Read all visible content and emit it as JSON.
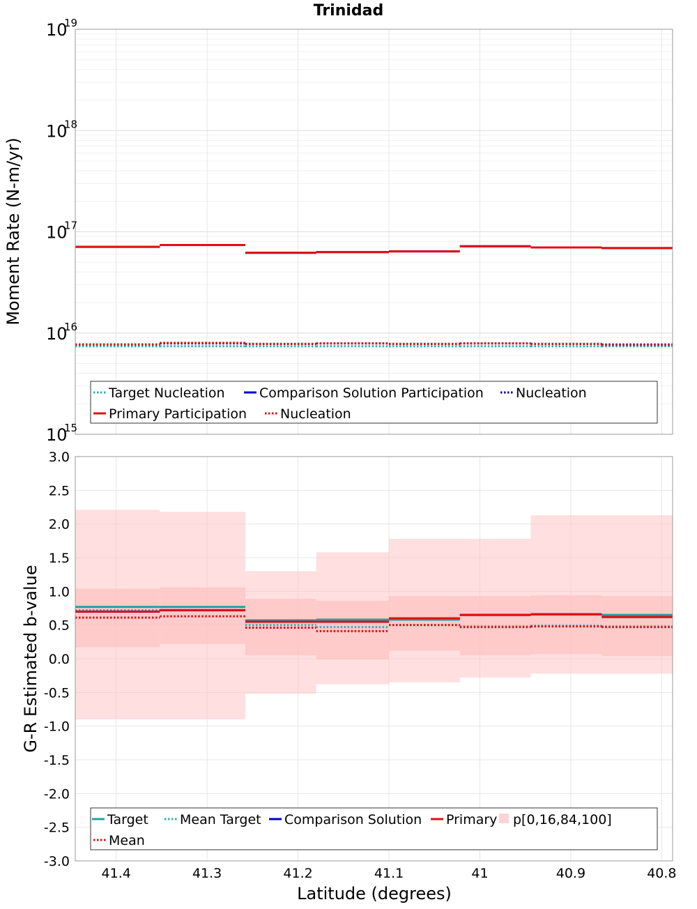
{
  "title": "Trinidad",
  "chart_data": [
    {
      "type": "line",
      "subtype": "step",
      "ylabel": "Moment Rate (N-m/yr)",
      "yscale": "log",
      "ylim": [
        1000000000000000.0,
        1e+19
      ],
      "y_ticks": [
        {
          "base": "10",
          "exp": "15"
        },
        {
          "base": "10",
          "exp": "16"
        },
        {
          "base": "10",
          "exp": "17"
        },
        {
          "base": "10",
          "exp": "18"
        },
        {
          "base": "10",
          "exp": "19"
        }
      ],
      "xlim": [
        41.445,
        40.788
      ],
      "x_bin_edges": [
        41.445,
        41.352,
        41.258,
        41.18,
        41.1,
        41.022,
        40.944,
        40.866,
        40.788
      ],
      "grid": true,
      "legend_position": "bottom-inside",
      "series": [
        {
          "name": "Target Nucleation",
          "color": "#26b5b5",
          "dash": "dotted",
          "values": [
            7400000000000000.0,
            7400000000000000.0,
            7400000000000000.0,
            7400000000000000.0,
            7400000000000000.0,
            7400000000000000.0,
            7400000000000000.0,
            7400000000000000.0
          ]
        },
        {
          "name": "Comparison Solution Participation",
          "color": "#0000cc",
          "dash": "solid",
          "values": [
            7.1e+16,
            7.4e+16,
            6.2e+16,
            6.3e+16,
            6.4e+16,
            7.2e+16,
            7e+16,
            6.9e+16
          ]
        },
        {
          "name": "Nucleation",
          "color": "#0000aa",
          "dash": "dotted",
          "values": [
            7700000000000000.0,
            7900000000000000.0,
            7800000000000000.0,
            7900000000000000.0,
            7800000000000000.0,
            7900000000000000.0,
            7800000000000000.0,
            7700000000000000.0
          ]
        },
        {
          "name": "Primary Participation",
          "color": "#e01010",
          "dash": "solid",
          "values": [
            7.1e+16,
            7.4e+16,
            6.2e+16,
            6.3e+16,
            6.4e+16,
            7.2e+16,
            7e+16,
            6.9e+16
          ]
        },
        {
          "name": "Nucleation",
          "color": "#e01010",
          "dash": "dotted",
          "values": [
            7700000000000000.0,
            8000000000000000.0,
            7800000000000000.0,
            7900000000000000.0,
            7800000000000000.0,
            7900000000000000.0,
            7800000000000000.0,
            7600000000000000.0
          ]
        }
      ]
    },
    {
      "type": "line",
      "subtype": "step",
      "ylabel": "G-R Estimated b-value",
      "xlabel": "Latitude (degrees)",
      "ylim": [
        -3.0,
        3.0
      ],
      "y_ticks": [
        "-3.0",
        "-2.5",
        "-2.0",
        "-1.5",
        "-1.0",
        "-0.5",
        "0.0",
        "0.5",
        "1.0",
        "1.5",
        "2.0",
        "2.5",
        "3.0"
      ],
      "x_ticks": [
        "41.4",
        "41.3",
        "41.2",
        "41.1",
        "41",
        "40.9",
        "40.8"
      ],
      "x_tick_values": [
        41.4,
        41.3,
        41.2,
        41.1,
        41.0,
        40.9,
        40.8
      ],
      "xlim": [
        41.445,
        40.788
      ],
      "x_bin_edges": [
        41.445,
        41.352,
        41.258,
        41.18,
        41.1,
        41.022,
        40.944,
        40.866,
        40.788
      ],
      "grid": true,
      "legend_position": "bottom-inside",
      "bands": {
        "name": "p[0,16,84,100]",
        "color": "#ffc0c0",
        "p0": [
          -0.9,
          -0.9,
          -0.52,
          -0.38,
          -0.35,
          -0.28,
          -0.22,
          -0.22
        ],
        "p16": [
          0.17,
          0.22,
          0.05,
          -0.01,
          0.12,
          0.05,
          0.07,
          0.04
        ],
        "p84": [
          1.04,
          1.06,
          0.89,
          0.86,
          0.93,
          0.93,
          0.94,
          0.93
        ],
        "p100": [
          2.21,
          2.18,
          1.3,
          1.58,
          1.78,
          1.78,
          2.13,
          2.13
        ]
      },
      "series": [
        {
          "name": "Target",
          "color": "#26a0a0",
          "dash": "solid",
          "values": [
            0.77,
            0.77,
            0.57,
            0.58,
            0.58,
            0.65,
            0.66,
            0.65
          ]
        },
        {
          "name": "Mean Target",
          "color": "#26b5b5",
          "dash": "dotted",
          "values": [
            0.72,
            0.72,
            0.5,
            0.47,
            0.5,
            0.48,
            0.49,
            0.48
          ]
        },
        {
          "name": "Comparison Solution",
          "color": "#0000cc",
          "dash": "solid",
          "values": [
            0.7,
            0.72,
            0.55,
            0.55,
            0.6,
            0.65,
            0.66,
            0.62
          ]
        },
        {
          "name": "Primary",
          "color": "#e01010",
          "dash": "solid",
          "values": [
            0.7,
            0.72,
            0.55,
            0.55,
            0.6,
            0.65,
            0.66,
            0.62
          ]
        },
        {
          "name": "Mean",
          "color": "#e01010",
          "dash": "dotted",
          "values": [
            0.61,
            0.63,
            0.46,
            0.41,
            0.5,
            0.47,
            0.48,
            0.47
          ]
        }
      ]
    }
  ]
}
